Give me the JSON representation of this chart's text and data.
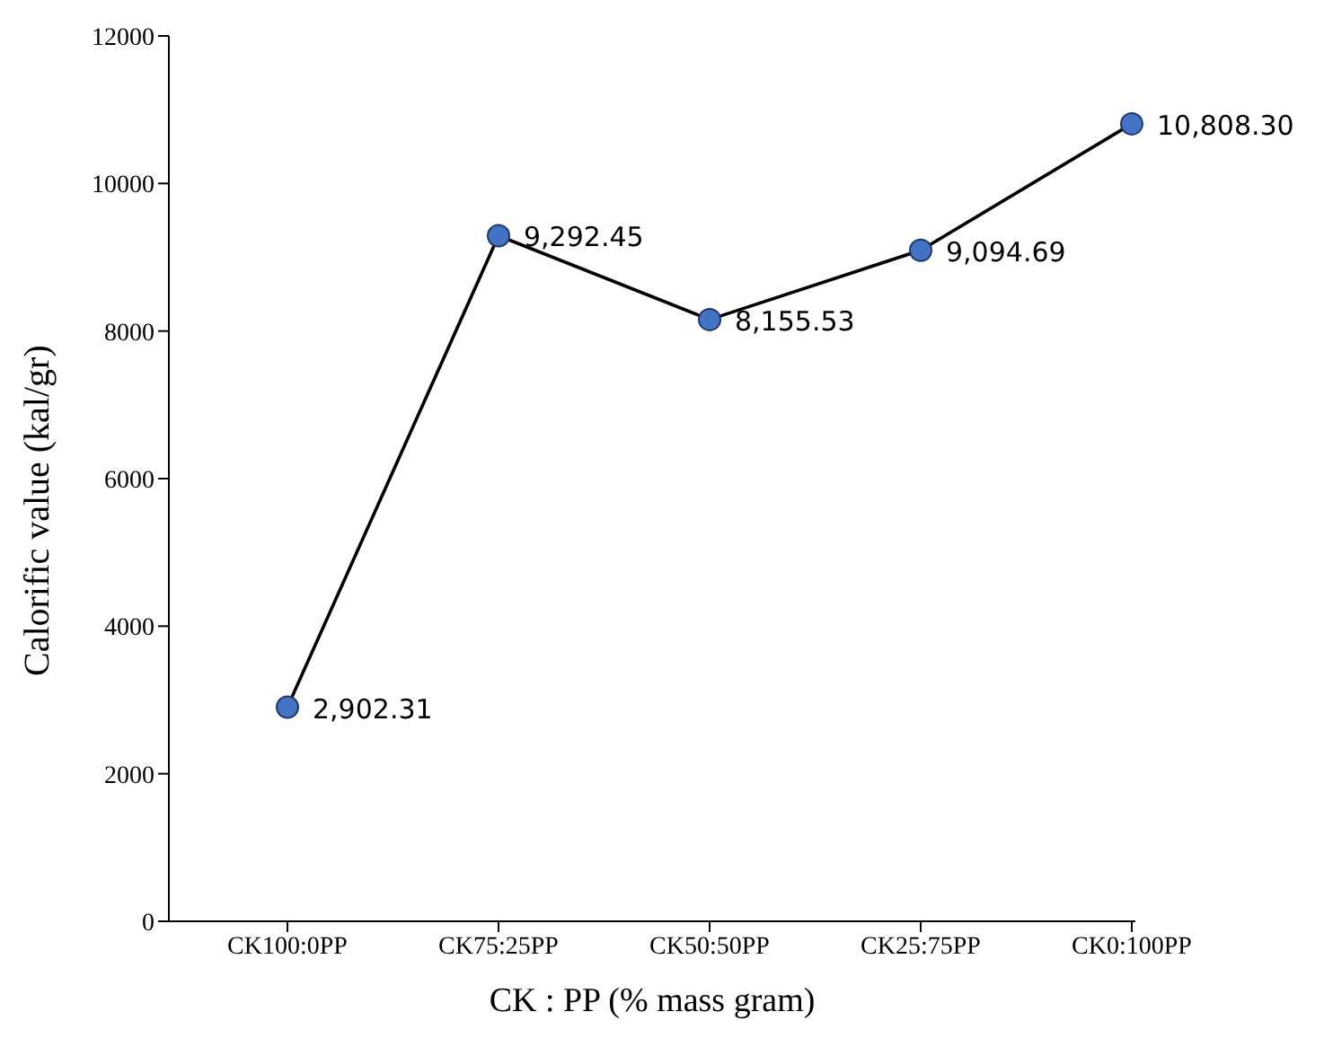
{
  "chart_data": {
    "type": "line",
    "xlabel": "CK : PP (% mass gram)",
    "ylabel": "Calorific value (kal/gr)",
    "categories": [
      "CK100:0PP",
      "CK75:25PP",
      "CK50:50PP",
      "CK25:75PP",
      "CK0:100PP"
    ],
    "series": [
      {
        "color": "#4472c4",
        "values": [
          2902.31,
          9292.45,
          8155.53,
          9094.69,
          10808.3
        ],
        "value_labels": [
          "2,902.31",
          "9,292.45",
          "8,155.53",
          "9,094.69",
          "10,808.30"
        ]
      }
    ],
    "ylim": [
      0,
      12000
    ],
    "yticks": [
      0,
      2000,
      4000,
      6000,
      8000,
      10000,
      12000
    ],
    "grid": false,
    "legend": false,
    "marker": "circle",
    "line_style": "solid"
  }
}
